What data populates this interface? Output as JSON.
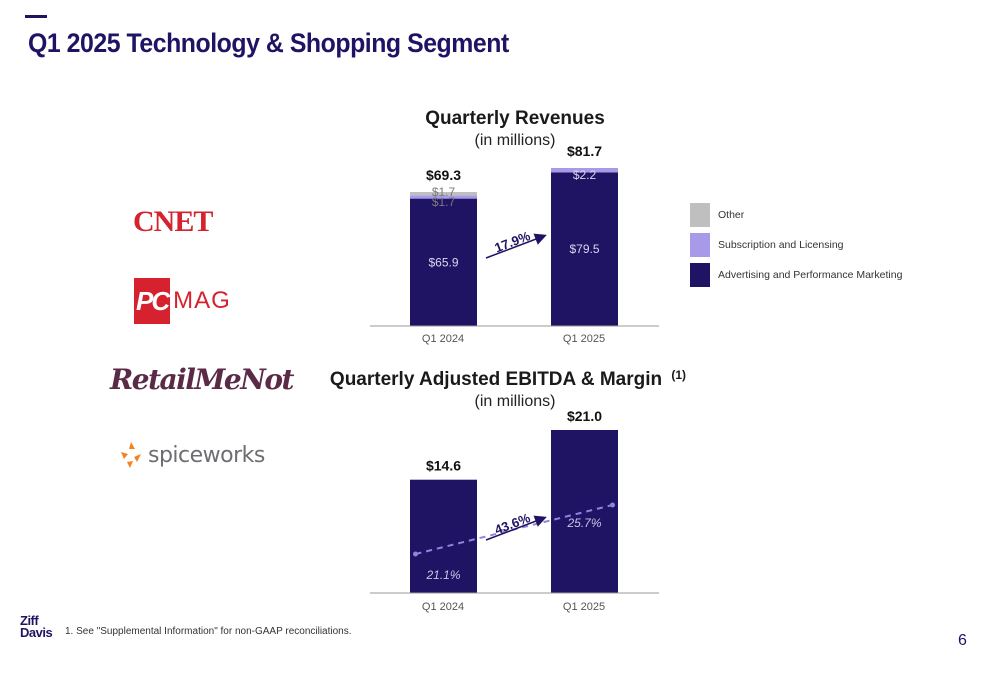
{
  "title": "Q1 2025 Technology & Shopping Segment",
  "logos": {
    "cnet": "CNET",
    "pcmag_pc": "PC",
    "pcmag_mag": "MAG",
    "retailmenot": "RetailMeNot",
    "spiceworks": "spiceworks"
  },
  "colors": {
    "advertising": "#1f1464",
    "subscription": "#a89ae8",
    "other": "#bfbfbf",
    "margin_line": "#8f85e0",
    "title": "#1f1464"
  },
  "chart_data": [
    {
      "type": "bar",
      "stacked": true,
      "title": "Quarterly Revenues",
      "subtitle": "(in millions)",
      "categories": [
        "Q1 2024",
        "Q1 2025"
      ],
      "series": [
        {
          "name": "Advertising and Performance Marketing",
          "values": [
            65.9,
            79.5
          ],
          "labels": [
            "$65.9",
            "$79.5"
          ]
        },
        {
          "name": "Subscription and Licensing",
          "values": [
            1.7,
            2.2
          ],
          "labels": [
            "$1.7",
            "$2.2"
          ]
        },
        {
          "name": "Other",
          "values": [
            1.7,
            0.0
          ],
          "labels": [
            "$1.7",
            ""
          ]
        }
      ],
      "totals": [
        69.3,
        81.7
      ],
      "total_labels": [
        "$69.3",
        "$81.7"
      ],
      "growth_label": "17.9%",
      "legend": {
        "position": "right",
        "items": [
          "Other",
          "Subscription and Licensing",
          "Advertising and Performance Marketing"
        ]
      },
      "ylim": [
        0,
        90
      ]
    },
    {
      "type": "bar",
      "title": "Quarterly Adjusted EBITDA & Margin",
      "title_sup": "(1)",
      "subtitle": "(in millions)",
      "categories": [
        "Q1 2024",
        "Q1 2025"
      ],
      "values": [
        14.6,
        21.0
      ],
      "value_labels": [
        "$14.6",
        "$21.0"
      ],
      "margin_line": {
        "values": [
          21.1,
          25.7
        ],
        "labels": [
          "21.1%",
          "25.7%"
        ]
      },
      "growth_label": "43.6%",
      "ylim": [
        0,
        22
      ]
    }
  ],
  "footer": {
    "logo_line1": "Ziff",
    "logo_line2": "Davis",
    "footnote": "1.  See \"Supplemental Information\" for non-GAAP reconciliations.",
    "page_number": "6"
  }
}
